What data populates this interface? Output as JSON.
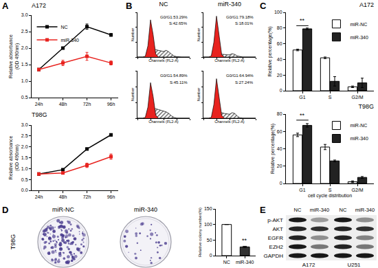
{
  "panel_labels": [
    "A",
    "B",
    "C",
    "D",
    "E"
  ],
  "chart_data": [
    {
      "type": "line",
      "title": "A172",
      "y_label": "Relative absorbance\n(OD 490nm)",
      "categories": [
        "24h",
        "48h",
        "72h",
        "96h"
      ],
      "series": [
        {
          "name": "NC",
          "color": "#000000",
          "marker": "square",
          "values": [
            1.35,
            2.0,
            2.65,
            2.4
          ],
          "errors": [
            0.03,
            0.03,
            0.08,
            0.04
          ]
        },
        {
          "name": "miR-340",
          "color": "#e8231f",
          "marker": "square",
          "values": [
            1.35,
            1.55,
            1.75,
            1.55
          ],
          "errors": [
            0.03,
            0.08,
            0.12,
            0.06
          ]
        }
      ],
      "ylim": [
        0.5,
        3.0
      ],
      "yticks": [
        0.5,
        {
          "value": 1.0,
          "label": "1.0"
        },
        1.5,
        {
          "value": 2.0,
          "label": "2.0"
        },
        2.5,
        {
          "value": 3.0,
          "label": "3.0"
        }
      ],
      "legend": "upper left",
      "grid": false
    },
    {
      "type": "line",
      "title": "T98G",
      "y_label": "Relative absorbance\n(OD 490nm)",
      "categories": [
        "24h",
        "48h",
        "72h",
        "96h"
      ],
      "series": [
        {
          "name": "NC",
          "color": "#000000",
          "marker": "square",
          "values": [
            0.75,
            0.95,
            1.9,
            2.55
          ],
          "errors": [
            0.03,
            0.04,
            0.05,
            0.05
          ]
        },
        {
          "name": "miR-340",
          "color": "#e8231f",
          "marker": "square",
          "values": [
            0.75,
            0.8,
            1.15,
            1.55
          ],
          "errors": [
            0.03,
            0.04,
            0.1,
            0.12
          ]
        }
      ],
      "ylim": [
        0.0,
        3.0
      ],
      "yticks": [
        {
          "value": 0.0,
          "label": "0.0"
        },
        0.5,
        {
          "value": 1.0,
          "label": "1.0"
        },
        1.5,
        {
          "value": 2.0,
          "label": "2.0"
        },
        2.5,
        {
          "value": 3.0,
          "label": "3.0"
        }
      ],
      "grid": false
    },
    {
      "type": "area",
      "title": "NC",
      "x_label": "Channels (FL2-A)",
      "y_label": "Number",
      "annotations": [
        "G0/G1:53.29%",
        "S:42.65%"
      ],
      "x": [
        0,
        10,
        20,
        30,
        40,
        50,
        60,
        70,
        80,
        90,
        100,
        110,
        120,
        130,
        140,
        150,
        160,
        170,
        180,
        190,
        200
      ],
      "series": [
        {
          "color": "#e8231f",
          "values": [
            0,
            0,
            0,
            2,
            30,
            100,
            60,
            8,
            0,
            0,
            0,
            0,
            0,
            0,
            0,
            0,
            0,
            0,
            0,
            0,
            0
          ]
        },
        {
          "color": "#555555",
          "values": [
            0,
            0,
            0,
            0,
            0,
            0,
            18,
            20,
            18,
            16,
            15,
            18,
            14,
            8,
            3,
            1,
            0,
            0,
            0,
            0,
            0
          ]
        }
      ],
      "xlim": [
        0,
        200
      ],
      "xticks": [
        0,
        50,
        100,
        150,
        200
      ],
      "ylim": [
        0,
        120
      ],
      "yticks": [
        0,
        40,
        80,
        120
      ],
      "tick_labels": false,
      "grid": false
    },
    {
      "type": "area",
      "title": "miR-340",
      "x_label": "Channels (FL2-A)",
      "y_label": "Number",
      "annotations": [
        "G0/G1:79.18%",
        "S:18.01%"
      ],
      "x": [
        0,
        10,
        20,
        30,
        40,
        50,
        60,
        70,
        80,
        90,
        100,
        110,
        120,
        130,
        140,
        150,
        160,
        170,
        180,
        190,
        200
      ],
      "series": [
        {
          "color": "#e8231f",
          "values": [
            0,
            0,
            0,
            3,
            40,
            110,
            55,
            6,
            0,
            0,
            0,
            0,
            0,
            0,
            0,
            0,
            0,
            0,
            0,
            0,
            0
          ]
        },
        {
          "color": "#555555",
          "values": [
            0,
            0,
            0,
            0,
            0,
            0,
            8,
            8,
            7,
            6,
            6,
            9,
            7,
            3,
            1,
            0,
            0,
            0,
            0,
            0,
            0
          ]
        }
      ],
      "xlim": [
        0,
        200
      ],
      "xticks": [
        0,
        50,
        100,
        150,
        200
      ],
      "ylim": [
        0,
        120
      ],
      "yticks": [
        0,
        40,
        80,
        120
      ],
      "tick_labels": false,
      "grid": false
    },
    {
      "type": "area",
      "x_label": "Channels (FL2-A)",
      "y_label": "Number",
      "annotations": [
        "G0/G1:54.89%",
        "S:45.11%"
      ],
      "x": [
        0,
        10,
        20,
        30,
        40,
        50,
        60,
        70,
        80,
        90,
        100,
        110,
        120,
        130,
        140,
        150,
        160,
        170,
        180,
        190,
        200
      ],
      "series": [
        {
          "color": "#e8231f",
          "values": [
            0,
            0,
            0,
            2,
            28,
            90,
            55,
            8,
            0,
            0,
            0,
            0,
            0,
            0,
            0,
            0,
            0,
            0,
            0,
            0,
            0
          ]
        },
        {
          "color": "#555555",
          "values": [
            0,
            0,
            0,
            0,
            0,
            0,
            22,
            24,
            22,
            20,
            18,
            16,
            12,
            6,
            2,
            0,
            0,
            0,
            0,
            0,
            0
          ]
        }
      ],
      "xlim": [
        0,
        200
      ],
      "xticks": [
        0,
        50,
        100,
        150,
        200
      ],
      "ylim": [
        0,
        120
      ],
      "yticks": [
        0,
        40,
        80,
        120
      ],
      "tick_labels": false,
      "grid": false
    },
    {
      "type": "area",
      "x_label": "Channels (FL2-A)",
      "y_label": "Number",
      "annotations": [
        "G0/G1:64.94%",
        "S:27.24%"
      ],
      "x": [
        0,
        10,
        20,
        30,
        40,
        50,
        60,
        70,
        80,
        90,
        100,
        110,
        120,
        130,
        140,
        150,
        160,
        170,
        180,
        190,
        200
      ],
      "series": [
        {
          "color": "#e8231f",
          "values": [
            0,
            0,
            0,
            2,
            35,
            100,
            55,
            7,
            0,
            0,
            0,
            0,
            0,
            0,
            0,
            0,
            0,
            0,
            0,
            0,
            0
          ]
        },
        {
          "color": "#555555",
          "values": [
            0,
            0,
            0,
            0,
            0,
            0,
            14,
            14,
            12,
            11,
            10,
            14,
            12,
            5,
            1,
            0,
            0,
            0,
            0,
            0,
            0
          ]
        }
      ],
      "xlim": [
        0,
        200
      ],
      "xticks": [
        0,
        50,
        100,
        150,
        200
      ],
      "ylim": [
        0,
        120
      ],
      "yticks": [
        0,
        40,
        80,
        120
      ],
      "tick_labels": false,
      "grid": false
    },
    {
      "type": "bar",
      "title": "A172",
      "y_label": "Relative percentage(%)",
      "categories": [
        "G1",
        "S",
        "G2/M"
      ],
      "series": [
        {
          "name": "miR-NC",
          "color": "#ffffff",
          "values": [
            52,
            42,
            5
          ],
          "errors": [
            1,
            1,
            1
          ]
        },
        {
          "name": "miR-340",
          "color": "#222222",
          "values": [
            79,
            12,
            10
          ],
          "errors": [
            1,
            6,
            6
          ]
        }
      ],
      "ylim": [
        0,
        100
      ],
      "yticks": [
        0,
        20,
        40,
        60,
        80,
        100
      ],
      "legend": "upper right",
      "grid": false,
      "annotations": [
        {
          "text": "**",
          "x": "G1",
          "y": 83
        }
      ]
    },
    {
      "type": "bar",
      "title": "T98G",
      "y_label": "Relative percentage(%)",
      "x_label": "cell cycle distribution",
      "categories": [
        "G1",
        "S",
        "G2/M"
      ],
      "series": [
        {
          "name": "miR-NC",
          "color": "#ffffff",
          "values": [
            56,
            42,
            2
          ],
          "errors": [
            2,
            3,
            1
          ]
        },
        {
          "name": "miR-340",
          "color": "#222222",
          "values": [
            67,
            26,
            7
          ],
          "errors": [
            2,
            1,
            1
          ]
        }
      ],
      "ylim": [
        0,
        80
      ],
      "yticks": [
        0,
        20,
        40,
        60,
        80
      ],
      "legend": "upper right",
      "grid": false,
      "annotations": [
        {
          "text": "**",
          "x": "G1",
          "y": 73
        }
      ]
    },
    {
      "type": "bar",
      "y_label": "Relative colony number(%)",
      "categories": [
        "NC",
        "miR-340"
      ],
      "values": [
        100,
        28
      ],
      "errors": [
        0,
        2
      ],
      "colors": [
        "#ffffff",
        "#333333"
      ],
      "ylim": [
        0,
        150
      ],
      "yticks": [
        0,
        50,
        100,
        150
      ],
      "grid": false,
      "annotations": [
        {
          "text": "**",
          "x": "miR-340",
          "y": 33
        }
      ]
    }
  ],
  "colony_assay": {
    "cell_line": "T98G",
    "plates": [
      "miR-NC",
      "miR-340"
    ]
  },
  "western_blot": {
    "lanes": [
      "NC",
      "miR-340",
      "NC",
      "miR-340"
    ],
    "cell_lines": [
      "A172",
      "U251"
    ],
    "rows": [
      {
        "label": "p-AKT",
        "intensity": [
          0.9,
          0.35,
          0.9,
          0.4
        ]
      },
      {
        "label": "AKT",
        "intensity": [
          0.85,
          0.8,
          0.85,
          0.8
        ]
      },
      {
        "label": "EGFR",
        "intensity": [
          0.85,
          0.4,
          0.85,
          0.45
        ]
      },
      {
        "label": "EZH2",
        "intensity": [
          0.9,
          0.5,
          0.85,
          0.5
        ]
      },
      {
        "label": "GAPDH",
        "intensity": [
          0.9,
          0.9,
          0.9,
          0.9
        ]
      }
    ]
  }
}
